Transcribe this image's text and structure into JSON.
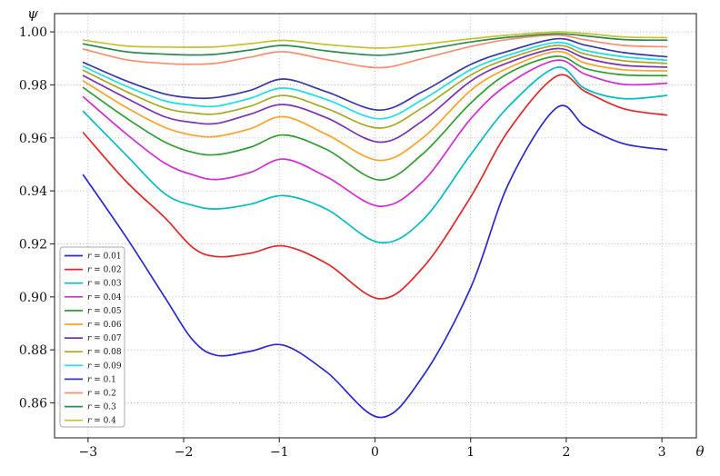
{
  "figure": {
    "background": "#ffffff"
  },
  "chart_data": {
    "type": "line",
    "title": "",
    "xlabel": "θ",
    "ylabel": "ψ",
    "xlim": [
      -3.35,
      3.36
    ],
    "ylim": [
      0.8468,
      1.0069
    ],
    "xticks": [
      -3,
      -2,
      -1,
      0,
      1,
      2,
      3
    ],
    "xtick_labels": [
      "−3",
      "−2",
      "−1",
      "0",
      "1",
      "2",
      "3"
    ],
    "yticks": [
      0.86,
      0.88,
      0.9,
      0.92,
      0.94,
      0.96,
      0.98,
      1.0
    ],
    "ytick_labels": [
      "0.86",
      "0.88",
      "0.90",
      "0.92",
      "0.94",
      "0.96",
      "0.98",
      "1.00"
    ],
    "grid": true,
    "grid_style": "dotted",
    "legend_position": "lower left",
    "x": [
      -3.05,
      -2.6,
      -2.2,
      -1.9,
      -1.65,
      -1.3,
      -0.95,
      -0.5,
      0.05,
      0.5,
      1.0,
      1.4,
      1.9,
      2.2,
      2.6,
      3.05
    ],
    "series": [
      {
        "name": "r = 0.01",
        "color": "#2828d7",
        "values": [
          0.946,
          0.9225,
          0.9,
          0.8835,
          0.8779,
          0.8795,
          0.8817,
          0.8715,
          0.8545,
          0.87,
          0.9034,
          0.943,
          0.9714,
          0.9643,
          0.9578,
          0.9555
        ]
      },
      {
        "name": "r = 0.02",
        "color": "#e82323",
        "values": [
          0.962,
          0.9435,
          0.93,
          0.9185,
          0.9152,
          0.9165,
          0.9192,
          0.9125,
          0.8993,
          0.911,
          0.9377,
          0.963,
          0.9833,
          0.9775,
          0.971,
          0.9686
        ]
      },
      {
        "name": "r = 0.03",
        "color": "#00bcc4",
        "values": [
          0.97,
          0.9535,
          0.939,
          0.9345,
          0.9332,
          0.935,
          0.9382,
          0.933,
          0.9205,
          0.929,
          0.9537,
          0.972,
          0.9866,
          0.9785,
          0.9748,
          0.976
        ]
      },
      {
        "name": "r = 0.04",
        "color": "#d42ad4",
        "values": [
          0.9755,
          0.9615,
          0.9505,
          0.946,
          0.9443,
          0.947,
          0.952,
          0.9452,
          0.9342,
          0.9435,
          0.9672,
          0.9805,
          0.9893,
          0.984,
          0.9802,
          0.9806
        ]
      },
      {
        "name": "r = 0.05",
        "color": "#2f9e2f",
        "values": [
          0.979,
          0.9675,
          0.9585,
          0.9545,
          0.9537,
          0.9565,
          0.9611,
          0.9555,
          0.9441,
          0.954,
          0.9731,
          0.9845,
          0.9908,
          0.9862,
          0.9838,
          0.9835
        ]
      },
      {
        "name": "r = 0.06",
        "color": "#ffa126",
        "values": [
          0.9815,
          0.9715,
          0.964,
          0.961,
          0.9606,
          0.9635,
          0.968,
          0.9612,
          0.9515,
          0.96,
          0.9779,
          0.9865,
          0.9926,
          0.9882,
          0.9857,
          0.9853
        ]
      },
      {
        "name": "r = 0.07",
        "color": "#7a30b8",
        "values": [
          0.9835,
          0.975,
          0.968,
          0.9658,
          0.9655,
          0.969,
          0.9726,
          0.9675,
          0.9584,
          0.9665,
          0.9814,
          0.9885,
          0.9937,
          0.9901,
          0.9874,
          0.9867
        ]
      },
      {
        "name": "r = 0.08",
        "color": "#a8a821",
        "values": [
          0.9855,
          0.9775,
          0.9713,
          0.9694,
          0.9691,
          0.972,
          0.976,
          0.971,
          0.9637,
          0.9715,
          0.9837,
          0.99,
          0.9949,
          0.9916,
          0.9891,
          0.9881
        ]
      },
      {
        "name": "r = 0.09",
        "color": "#19dfe8",
        "values": [
          0.987,
          0.9795,
          0.974,
          0.9723,
          0.972,
          0.975,
          0.9788,
          0.9744,
          0.9672,
          0.9745,
          0.9857,
          0.9913,
          0.996,
          0.993,
          0.9906,
          0.9893
        ]
      },
      {
        "name": "r = 0.1",
        "color": "#3636ad",
        "values": [
          0.9885,
          0.9815,
          0.9766,
          0.9751,
          0.9753,
          0.978,
          0.9822,
          0.9773,
          0.9705,
          0.9775,
          0.9877,
          0.9928,
          0.9974,
          0.995,
          0.9922,
          0.9906
        ]
      },
      {
        "name": "r = 0.2",
        "color": "#fb8d6d",
        "values": [
          0.9935,
          0.9895,
          0.9881,
          0.9878,
          0.9882,
          0.9905,
          0.9925,
          0.9895,
          0.9865,
          0.99,
          0.9945,
          0.9972,
          0.9988,
          0.997,
          0.9949,
          0.9944
        ]
      },
      {
        "name": "r = 0.3",
        "color": "#2e8b50",
        "values": [
          0.9955,
          0.9925,
          0.9916,
          0.9913,
          0.9916,
          0.9932,
          0.9949,
          0.9928,
          0.9912,
          0.9932,
          0.9962,
          0.998,
          0.9993,
          0.9985,
          0.9971,
          0.9969
        ]
      },
      {
        "name": "r = 0.4",
        "color": "#c3c32f",
        "values": [
          0.9969,
          0.9947,
          0.9943,
          0.9942,
          0.9944,
          0.9956,
          0.9968,
          0.9952,
          0.9939,
          0.9953,
          0.9974,
          0.9988,
          1.0,
          0.9994,
          0.9981,
          0.9978
        ]
      }
    ],
    "colors": {
      "grid": "#b3b3b3",
      "spine": "#3c3c3c",
      "tick": "#3c3c3c",
      "legend_border": "#ababab",
      "legend_bg": "#ffffff"
    }
  }
}
